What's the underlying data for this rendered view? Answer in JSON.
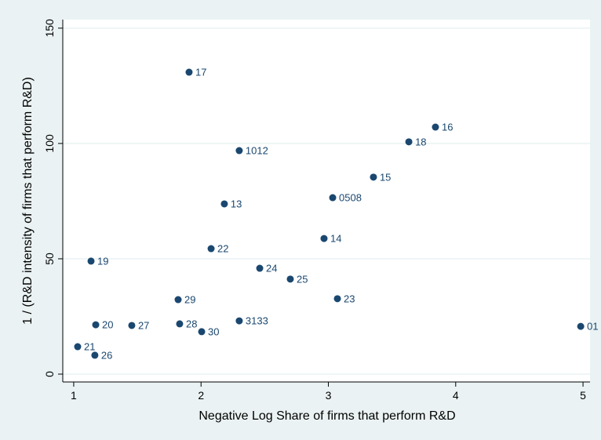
{
  "chart_data": {
    "type": "scatter",
    "xlabel": "Negative Log Share of firms that perform R&D",
    "ylabel": "1 / (R&D intensity of firms that perform R&D)",
    "labels": [
      "17",
      "16",
      "18",
      "1012",
      "15",
      "0508",
      "13",
      "14",
      "22",
      "19",
      "24",
      "25",
      "29",
      "23",
      "3133",
      "20",
      "27",
      "28",
      "01",
      "30",
      "21",
      "26"
    ],
    "x": [
      1.906,
      3.841,
      3.632,
      2.3,
      3.354,
      3.034,
      2.183,
      2.966,
      2.079,
      1.136,
      2.461,
      2.701,
      1.82,
      3.071,
      2.3,
      1.173,
      1.456,
      1.832,
      4.982,
      2.005,
      1.031,
      1.166
    ],
    "values": [
      130.9,
      107.1,
      100.7,
      96.9,
      85.4,
      76.5,
      73.8,
      58.8,
      54.4,
      49.0,
      45.9,
      41.2,
      32.3,
      32.7,
      23.1,
      21.4,
      21.1,
      21.8,
      20.7,
      18.4,
      11.9,
      8.2
    ],
    "color": "#1a476f",
    "xlim": [
      0.914,
      5.055
    ],
    "ylim": [
      -3.4,
      153.7
    ],
    "xticks": [
      1,
      2,
      3,
      4,
      5
    ],
    "yticks": [
      0,
      50,
      100,
      150
    ],
    "grid": true
  }
}
